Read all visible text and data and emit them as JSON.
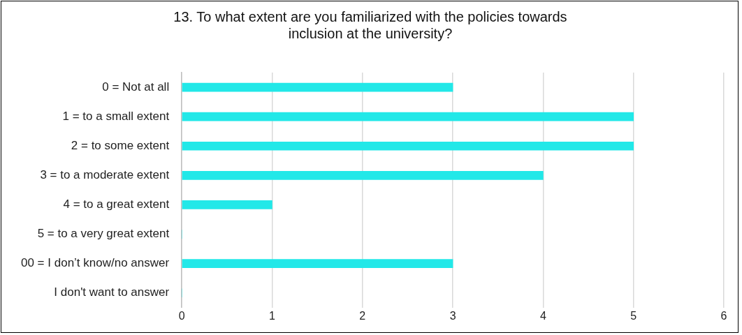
{
  "chart_data": {
    "type": "bar",
    "orientation": "horizontal",
    "title": "13. To what extent are you familiarized with the policies towards inclusion at the university?",
    "categories": [
      "0 = Not at all",
      "1 = to a small extent",
      "2 = to some extent",
      "3 = to a moderate extent",
      "4 = to a great extent",
      "5 = to a very great extent",
      "00 = I don’t know/no answer",
      "I don't want to answer"
    ],
    "values": [
      3,
      5,
      5,
      4,
      1,
      0,
      3,
      0
    ],
    "color": "#22e8e8",
    "xlim": [
      0,
      6
    ],
    "xticks": [
      0,
      1,
      2,
      3,
      4,
      5,
      6
    ],
    "grid": "x",
    "legend": false
  }
}
